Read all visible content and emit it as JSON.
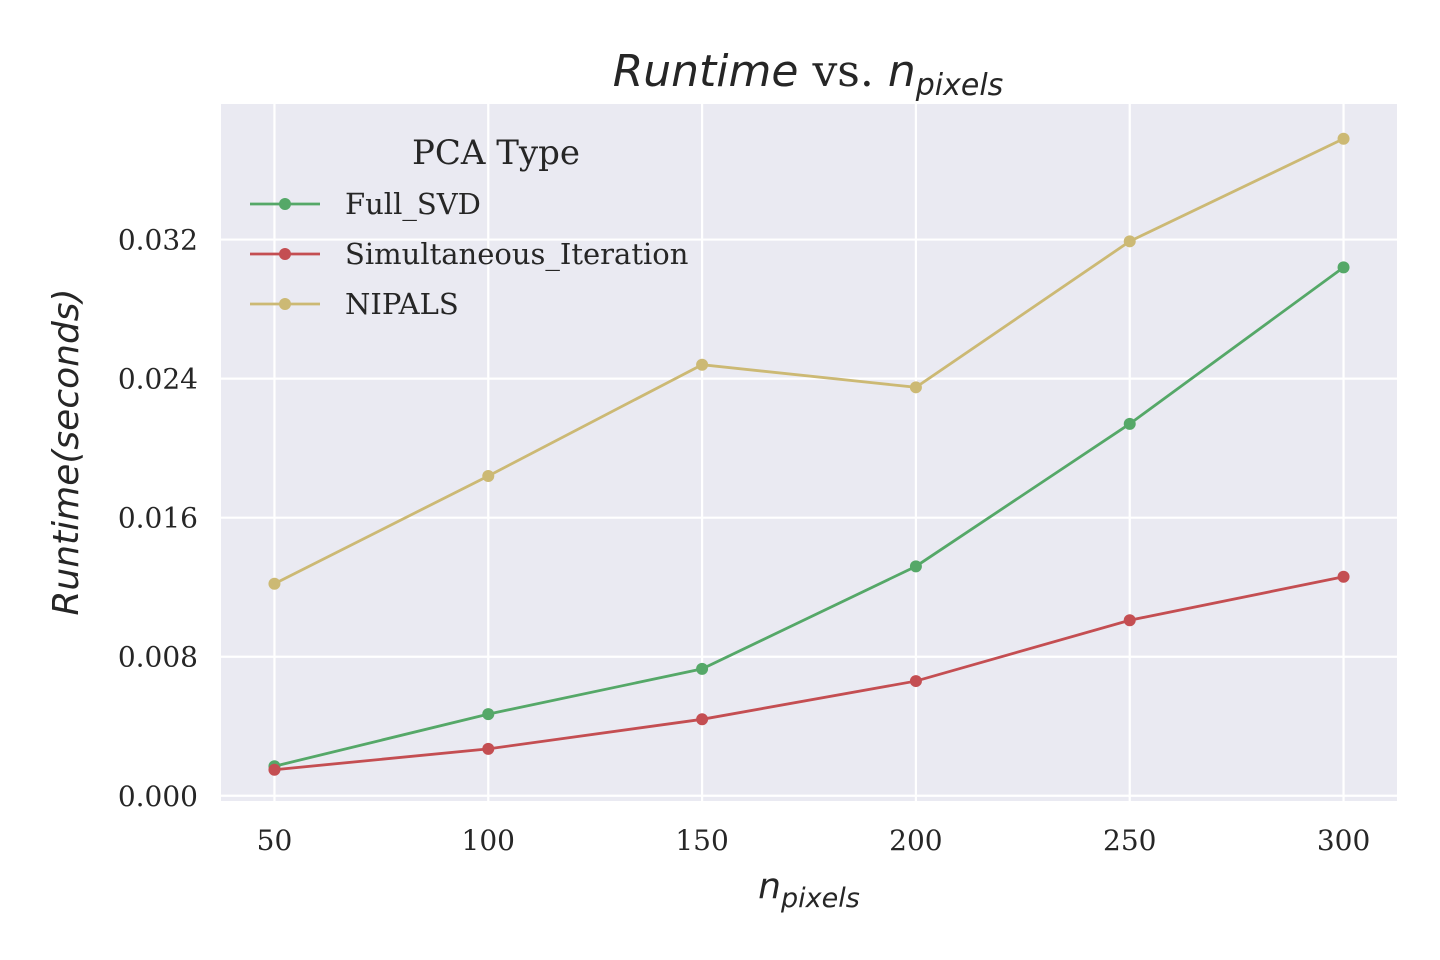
{
  "chart_data": {
    "type": "line",
    "title": {
      "main": "Runtime",
      "vs": " vs. ",
      "var": "n",
      "sub": "pixels"
    },
    "xlabel": {
      "var": "n",
      "sub": "pixels"
    },
    "ylabel": "Runtime(seconds)",
    "x": [
      50,
      100,
      150,
      200,
      250,
      300
    ],
    "xticks": [
      "50",
      "100",
      "150",
      "200",
      "250",
      "300"
    ],
    "yticks": [
      "0.000",
      "0.008",
      "0.016",
      "0.024",
      "0.032"
    ],
    "ytick_values": [
      0,
      0.008,
      0.016,
      0.024,
      0.032
    ],
    "xlim": [
      37.5,
      312.5
    ],
    "ylim": [
      -0.0003,
      0.0398
    ],
    "grid": true,
    "legend": {
      "title": "PCA Type",
      "placement": "top-left"
    },
    "series": [
      {
        "name": "Full_SVD",
        "color": "#55a868",
        "values": [
          0.0017,
          0.0047,
          0.0073,
          0.0132,
          0.0214,
          0.0304
        ]
      },
      {
        "name": "Simultaneous_Iteration",
        "color": "#c44e52",
        "values": [
          0.0015,
          0.0027,
          0.0044,
          0.0066,
          0.0101,
          0.0126
        ]
      },
      {
        "name": "NIPALS",
        "color": "#ccb974",
        "values": [
          0.0122,
          0.0184,
          0.0248,
          0.0235,
          0.0319,
          0.0378
        ]
      }
    ]
  }
}
